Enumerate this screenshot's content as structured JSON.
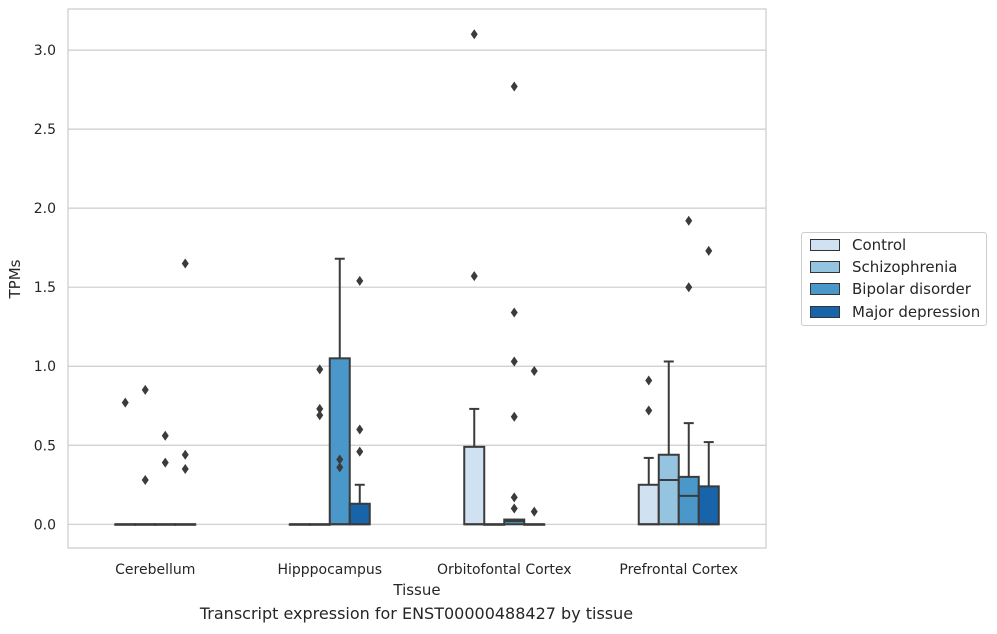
{
  "caption": "Transcript expression for ENST00000488427 by tissue",
  "chart_data": {
    "type": "box",
    "title": "",
    "xlabel": "Tissue",
    "ylabel": "TPMs",
    "ylim": [
      -0.15,
      3.26
    ],
    "yticks": [
      "0.0",
      "0.5",
      "1.0",
      "1.5",
      "2.0",
      "2.5",
      "3.0"
    ],
    "ytick_values": [
      0,
      0.5,
      1.0,
      1.5,
      2.0,
      2.5,
      3.0
    ],
    "grid": true,
    "legend_position": "right",
    "categories": [
      "Cerebellum",
      "Hipppocampus",
      "Orbitofontal Cortex",
      "Prefrontal Cortex"
    ],
    "series": [
      {
        "name": "Control",
        "color": "#d0e1f2",
        "boxes": [
          {
            "q1": 0,
            "median": 0,
            "q3": 0,
            "whislo": 0,
            "whishi": 0,
            "fliers": [
              0.77
            ]
          },
          {
            "q1": 0,
            "median": 0,
            "q3": 0,
            "whislo": 0,
            "whishi": 0,
            "fliers": []
          },
          {
            "q1": 0,
            "median": 0,
            "q3": 0.49,
            "whislo": 0,
            "whishi": 0.73,
            "fliers": [
              3.1,
              1.57
            ]
          },
          {
            "q1": 0,
            "median": 0,
            "q3": 0.25,
            "whislo": 0,
            "whishi": 0.42,
            "fliers": [
              0.91,
              0.72
            ]
          }
        ]
      },
      {
        "name": "Schizophrenia",
        "color": "#94c4df",
        "boxes": [
          {
            "q1": 0,
            "median": 0,
            "q3": 0,
            "whislo": 0,
            "whishi": 0,
            "fliers": [
              0.85,
              0.28
            ]
          },
          {
            "q1": 0,
            "median": 0,
            "q3": 0,
            "whislo": 0,
            "whishi": 0,
            "fliers": [
              0.98,
              0.73,
              0.69
            ]
          },
          {
            "q1": 0,
            "median": 0,
            "q3": 0,
            "whislo": 0,
            "whishi": 0,
            "fliers": []
          },
          {
            "q1": 0,
            "median": 0.28,
            "q3": 0.44,
            "whislo": 0,
            "whishi": 1.03,
            "fliers": []
          }
        ]
      },
      {
        "name": "Bipolar disorder",
        "color": "#4a98c9",
        "boxes": [
          {
            "q1": 0,
            "median": 0,
            "q3": 0,
            "whislo": 0,
            "whishi": 0,
            "fliers": [
              0.56,
              0.39
            ]
          },
          {
            "q1": 0,
            "median": 0,
            "q3": 1.05,
            "whislo": 0,
            "whishi": 1.68,
            "fliers": [
              0.41,
              0.36
            ]
          },
          {
            "q1": 0,
            "median": 0.02,
            "q3": 0.03,
            "whislo": 0,
            "whishi": 0.03,
            "fliers": [
              2.77,
              1.34,
              1.03,
              0.68,
              0.17,
              0.1
            ]
          },
          {
            "q1": 0,
            "median": 0.18,
            "q3": 0.3,
            "whislo": 0,
            "whishi": 0.64,
            "fliers": [
              1.92,
              1.5
            ]
          }
        ]
      },
      {
        "name": "Major depression",
        "color": "#1764ab",
        "boxes": [
          {
            "q1": 0,
            "median": 0,
            "q3": 0,
            "whislo": 0,
            "whishi": 0,
            "fliers": [
              1.65,
              0.44,
              0.35
            ]
          },
          {
            "q1": 0,
            "median": 0,
            "q3": 0.13,
            "whislo": 0,
            "whishi": 0.25,
            "fliers": [
              1.54,
              0.6,
              0.46
            ]
          },
          {
            "q1": 0,
            "median": 0,
            "q3": 0,
            "whislo": 0,
            "whishi": 0,
            "fliers": [
              0.97,
              0.08
            ]
          },
          {
            "q1": 0,
            "median": 0,
            "q3": 0.24,
            "whislo": 0,
            "whishi": 0.52,
            "fliers": [
              1.73
            ]
          }
        ]
      }
    ]
  }
}
